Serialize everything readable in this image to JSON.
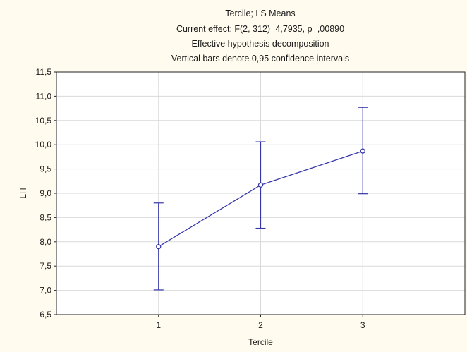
{
  "chart_data": {
    "type": "line",
    "title_lines": [
      "Tercile; LS Means",
      "Current effect: F(2, 312)=4,7935, p=,00890",
      "Effective hypothesis decomposition",
      "Vertical bars denote 0,95 confidence intervals"
    ],
    "xlabel": "Tercile",
    "ylabel": "LH",
    "categories": [
      "1",
      "2",
      "3"
    ],
    "xlim": [
      0,
      4
    ],
    "ylim": [
      6.5,
      11.5
    ],
    "y_ticks": [
      "6,5",
      "7,0",
      "7,5",
      "8,0",
      "8,5",
      "9,0",
      "9,5",
      "10,0",
      "10,5",
      "11,0",
      "11,5"
    ],
    "series": [
      {
        "values": [
          7.9,
          9.17,
          9.87
        ],
        "ci_lower": [
          7.01,
          8.28,
          8.99
        ],
        "ci_upper": [
          8.8,
          10.06,
          10.77
        ]
      }
    ],
    "grid": true,
    "colors": {
      "background": "#fffbee",
      "plot_background": "#ffffff",
      "series": "#3636a8",
      "grid": "#d9d9d9"
    }
  }
}
